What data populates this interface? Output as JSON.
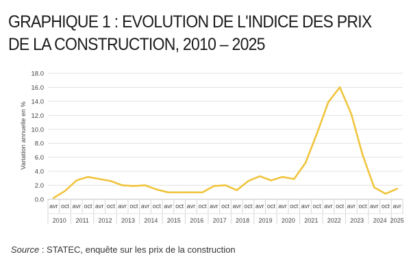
{
  "title": "GRAPHIQUE 1 : EVOLUTION DE L'INDICE DES PRIX DE LA CONSTRUCTION, 2010 – 2025",
  "source": {
    "label": "Source",
    "text": " : STATEC, enquête sur les prix de la construction"
  },
  "chart_data": {
    "type": "line",
    "title": "GRAPHIQUE 1 : EVOLUTION DE L'INDICE DES PRIX DE LA CONSTRUCTION, 2010 – 2025",
    "ylabel": "Variation annuelle en %",
    "xlabel": "",
    "ylim": [
      0,
      18
    ],
    "yticks": [
      "0.0",
      "2.0",
      "4.0",
      "6.0",
      "8.0",
      "10.0",
      "12.0",
      "14.0",
      "16.0",
      "18.0"
    ],
    "grid": true,
    "legend": "none",
    "line_color": "#f0c43c",
    "x": [
      "avr 2010",
      "oct 2010",
      "avr 2011",
      "oct 2011",
      "avr 2012",
      "oct 2012",
      "avr 2013",
      "oct 2013",
      "avr 2014",
      "oct 2014",
      "avr 2015",
      "oct 2015",
      "avr 2016",
      "oct 2016",
      "avr 2017",
      "oct 2017",
      "avr 2018",
      "oct 2018",
      "avr 2019",
      "oct 2019",
      "avr 2020",
      "oct 2020",
      "avr 2021",
      "oct 2021",
      "avr 2022",
      "oct 2022",
      "avr 2023",
      "oct 2023",
      "avr 2024",
      "oct 2024",
      "avr 2025"
    ],
    "x_month_labels": [
      "avr",
      "oct",
      "avr",
      "oct",
      "avr",
      "oct",
      "avr",
      "oct",
      "avr",
      "oct",
      "avr",
      "oct",
      "avr",
      "oct",
      "avr",
      "oct",
      "avr",
      "oct",
      "avr",
      "oct",
      "avr",
      "oct",
      "avr",
      "oct",
      "avr",
      "oct",
      "avr",
      "oct",
      "avr",
      "oct",
      "avr"
    ],
    "x_year_labels": [
      "2010",
      "2011",
      "2012",
      "2013",
      "2014",
      "2015",
      "2016",
      "2017",
      "2018",
      "2019",
      "2020",
      "2021",
      "2022",
      "2023",
      "2024",
      "2025"
    ],
    "series": [
      {
        "values": [
          0.2,
          1.2,
          2.7,
          3.2,
          2.9,
          2.6,
          2.0,
          1.9,
          2.0,
          1.4,
          1.0,
          1.0,
          1.0,
          1.0,
          1.9,
          2.0,
          1.3,
          2.6,
          3.3,
          2.7,
          3.2,
          2.9,
          5.2,
          9.4,
          13.9,
          16.0,
          12.2,
          6.3,
          1.7,
          0.8,
          1.5
        ]
      }
    ]
  }
}
